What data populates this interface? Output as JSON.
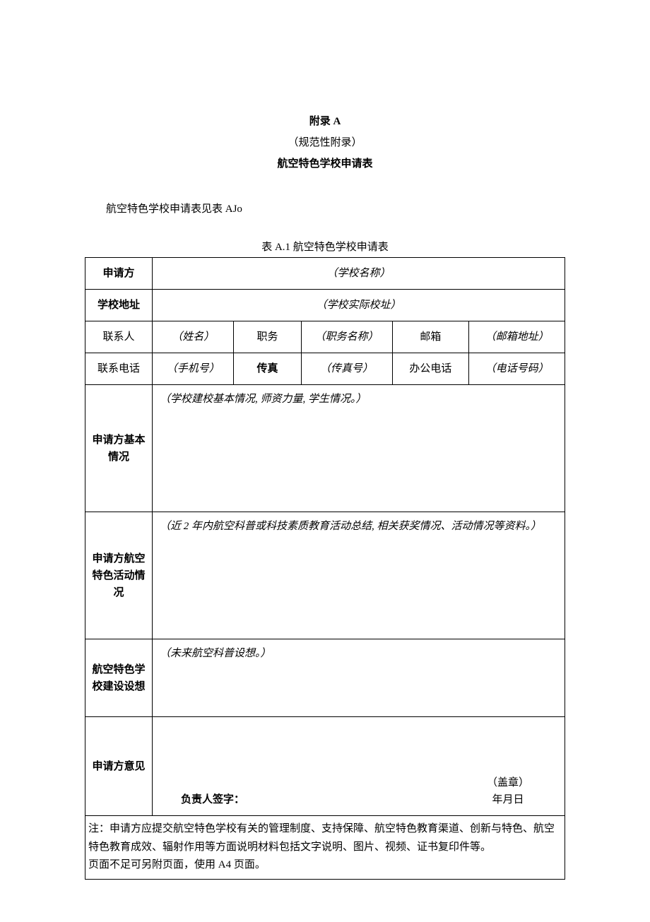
{
  "header": {
    "line1": "附录 A",
    "line2": "（规范性附录）",
    "line3": "航空特色学校申请表"
  },
  "intro": "航空特色学校申请表见表 AJo",
  "table_caption": "表 A.1 航空特色学校申请表",
  "rows": {
    "r1_label": "申请方",
    "r1_value": "（学校名称）",
    "r2_label": "学校地址",
    "r2_value": "（学校实际校址）",
    "r3": {
      "c1": "联系人",
      "c2": "（姓名）",
      "c3": "职务",
      "c4": "（职务名称）",
      "c5": "邮箱",
      "c6": "（邮箱地址）"
    },
    "r4": {
      "c1": "联系电话",
      "c2": "（手机号）",
      "c3": "传真",
      "c4": "（传真号）",
      "c5": "办公电话",
      "c6": "（电话号码）"
    },
    "r5_label": "申请方基本情况",
    "r5_value": "（学校建校基本情况, 师资力量, 学生情况。）",
    "r6_label": "申请方航空特色活动情况",
    "r6_value": "（近 2 年内航空科普或科技素质教育活动总结, 相关获奖情况、活动情况等资料。）",
    "r7_label": "航空特色学校建设设想",
    "r7_value": "（未来航空科普设想。）",
    "r8_label": "申请方意见",
    "r8_sign": "负责人签字：",
    "r8_seal": "（盖章）",
    "r8_date": "年月日",
    "note": "注：申请方应提交航空特色学校有关的管理制度、支持保障、航空特色教育渠道、创新与特色、航空特色教育成效、辐射作用等方面说明材料包括文字说明、图片、视频、证书复印件等。\n页面不足可另附页面，使用 A4 页面。"
  }
}
